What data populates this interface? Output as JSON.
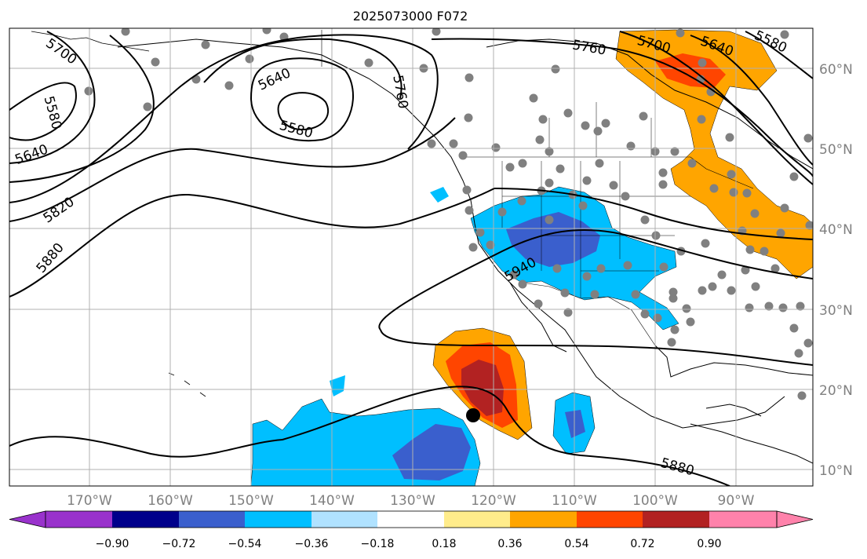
{
  "title": "2025073000 F072",
  "lat_labels": [
    "60°N",
    "50°N",
    "40°N",
    "30°N",
    "20°N",
    "10°N"
  ],
  "lon_labels": [
    "170°W",
    "160°W",
    "150°W",
    "140°W",
    "130°W",
    "120°W",
    "110°W",
    "100°W",
    "90°W"
  ],
  "contour_labels": [
    "5700",
    "5580",
    "5640",
    "5820",
    "5880",
    "5640",
    "5580",
    "5760",
    "5760",
    "5700",
    "5640",
    "5580",
    "5940",
    "5880"
  ],
  "colorbar": {
    "tick_labels": [
      "−0.90",
      "−0.72",
      "−0.54",
      "−0.36",
      "−0.18",
      "0.18",
      "0.36",
      "0.54",
      "0.72",
      "0.90"
    ],
    "colors": [
      "#9932cc",
      "#00008b",
      "#3a5fcd",
      "#00bfff",
      "#b0e2ff",
      "#ffffff",
      "#ffec8b",
      "#ffa500",
      "#ff4500",
      "#b22222",
      "#ff82ab"
    ]
  },
  "colors": {
    "contour": "#000000",
    "station": "#808080",
    "grid": "#b0b0b0",
    "marker": "#000000"
  }
}
